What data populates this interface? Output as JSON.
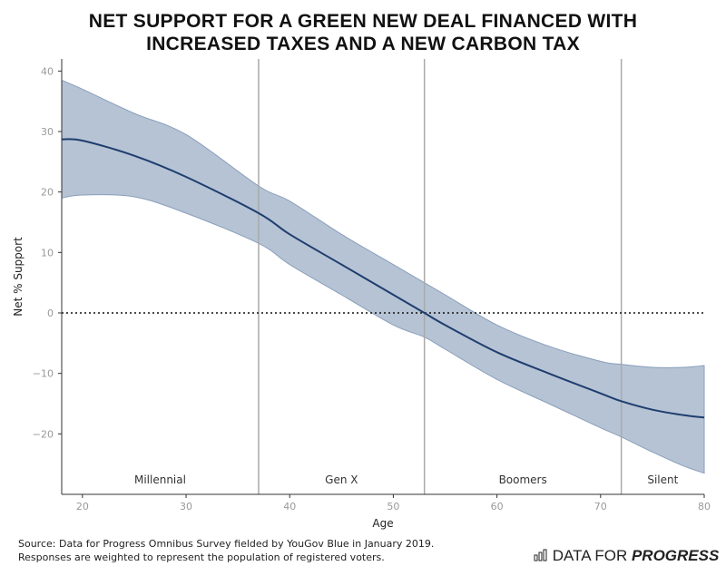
{
  "chart_data": {
    "type": "line",
    "title_line1": "NET SUPPORT FOR A GREEN NEW DEAL FINANCED WITH",
    "title_line2": "INCREASED TAXES AND A NEW CARBON TAX",
    "xlabel": "Age",
    "ylabel": "Net % Support",
    "xlim": [
      18,
      80
    ],
    "ylim": [
      -30,
      42
    ],
    "xticks": [
      20,
      30,
      40,
      50,
      60,
      70,
      80
    ],
    "yticks": [
      40,
      30,
      20,
      10,
      0,
      -10,
      -20
    ],
    "x": [
      18,
      20,
      25,
      30,
      37,
      40,
      45,
      50,
      53,
      55,
      60,
      65,
      70,
      72,
      75,
      78,
      80
    ],
    "series": [
      {
        "name": "Net support",
        "values": [
          28.7,
          28.5,
          26,
          22.5,
          16.5,
          13,
          8,
          3,
          0,
          -2,
          -6.5,
          -10,
          -13.3,
          -14.6,
          -16,
          -16.9,
          -17.3
        ]
      },
      {
        "name": "Upper bound",
        "values": [
          38.5,
          37,
          33,
          29.5,
          21,
          18.5,
          13,
          8,
          5,
          3,
          -2,
          -5.5,
          -8,
          -8.5,
          -9,
          -9,
          -8.7
        ]
      },
      {
        "name": "Lower bound",
        "values": [
          19,
          19.5,
          19.2,
          16.5,
          11.5,
          8,
          3,
          -2,
          -4,
          -6,
          -11,
          -15,
          -19,
          -20.5,
          -23,
          -25.3,
          -26.5
        ]
      }
    ],
    "reference_line": 0,
    "generation_boundaries": [
      37,
      53,
      72
    ],
    "generations": [
      {
        "label": "Millennial",
        "center": 27.5
      },
      {
        "label": "Gen X",
        "center": 45
      },
      {
        "label": "Boomers",
        "center": 62.5
      },
      {
        "label": "Silent",
        "center": 76
      }
    ],
    "colors": {
      "line": "#1f3d6e",
      "band": "#b5c3d4",
      "band_edge": "#8a9fba",
      "divider": "#aaaaaa"
    }
  },
  "source_line1": "Source: Data for Progress Omnibus Survey fielded by YouGov Blue in January 2019.",
  "source_line2": "Responses are weighted to represent the population of registered voters.",
  "logo": {
    "light": "DATA FOR ",
    "bold": "PROGRESS"
  }
}
